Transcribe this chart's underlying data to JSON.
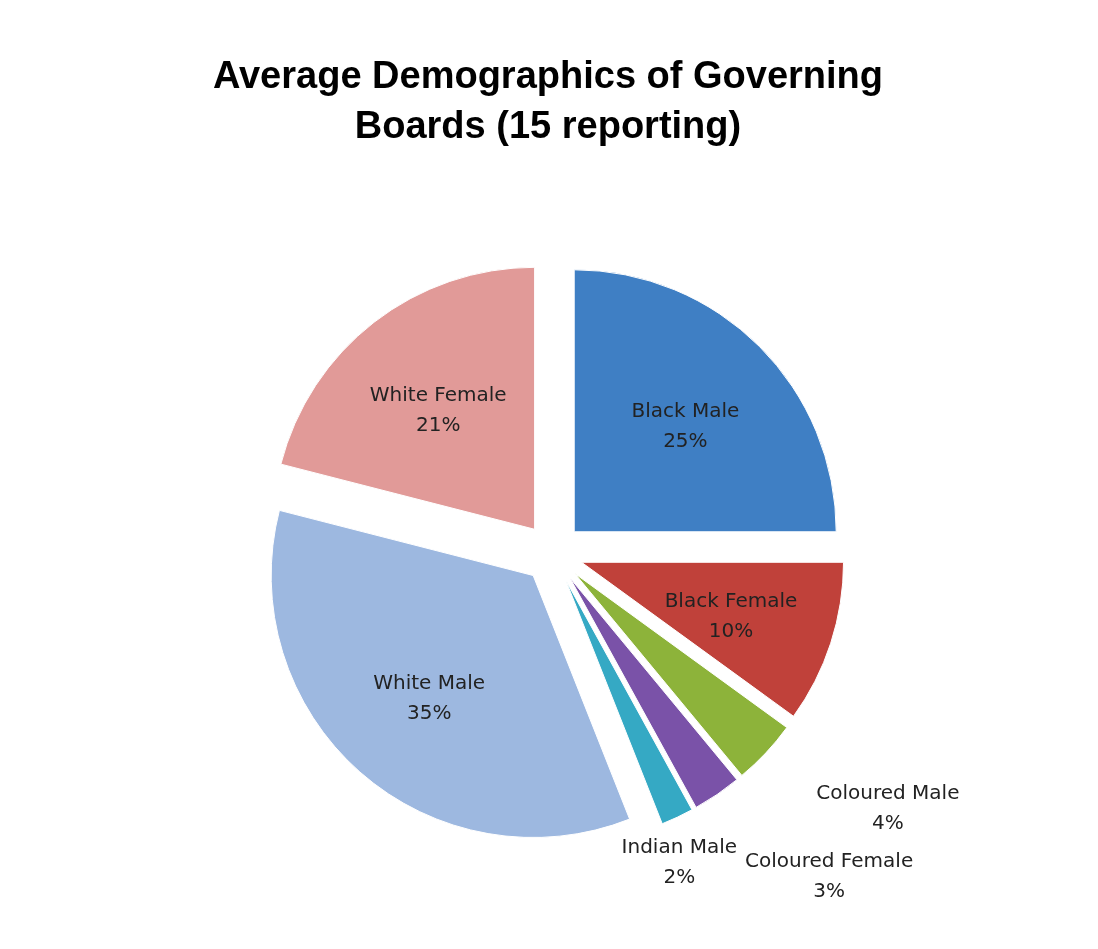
{
  "chart_data": {
    "type": "pie",
    "title": "Average Demographics of Governing Boards  (15 reporting)",
    "categories": [
      "Black Male",
      "Black Female",
      "Coloured Male",
      "Coloured Female",
      "Indian Male",
      "White Male",
      "White Female"
    ],
    "values": [
      25,
      10,
      4,
      3,
      2,
      35,
      21
    ],
    "colors": [
      "#3f7fc4",
      "#c0413a",
      "#8db33a",
      "#7a52a8",
      "#35a9c4",
      "#9db8e0",
      "#e19a98"
    ],
    "value_labels": [
      "25%",
      "10%",
      "4%",
      "3%",
      "2%",
      "35%",
      "21%"
    ]
  }
}
